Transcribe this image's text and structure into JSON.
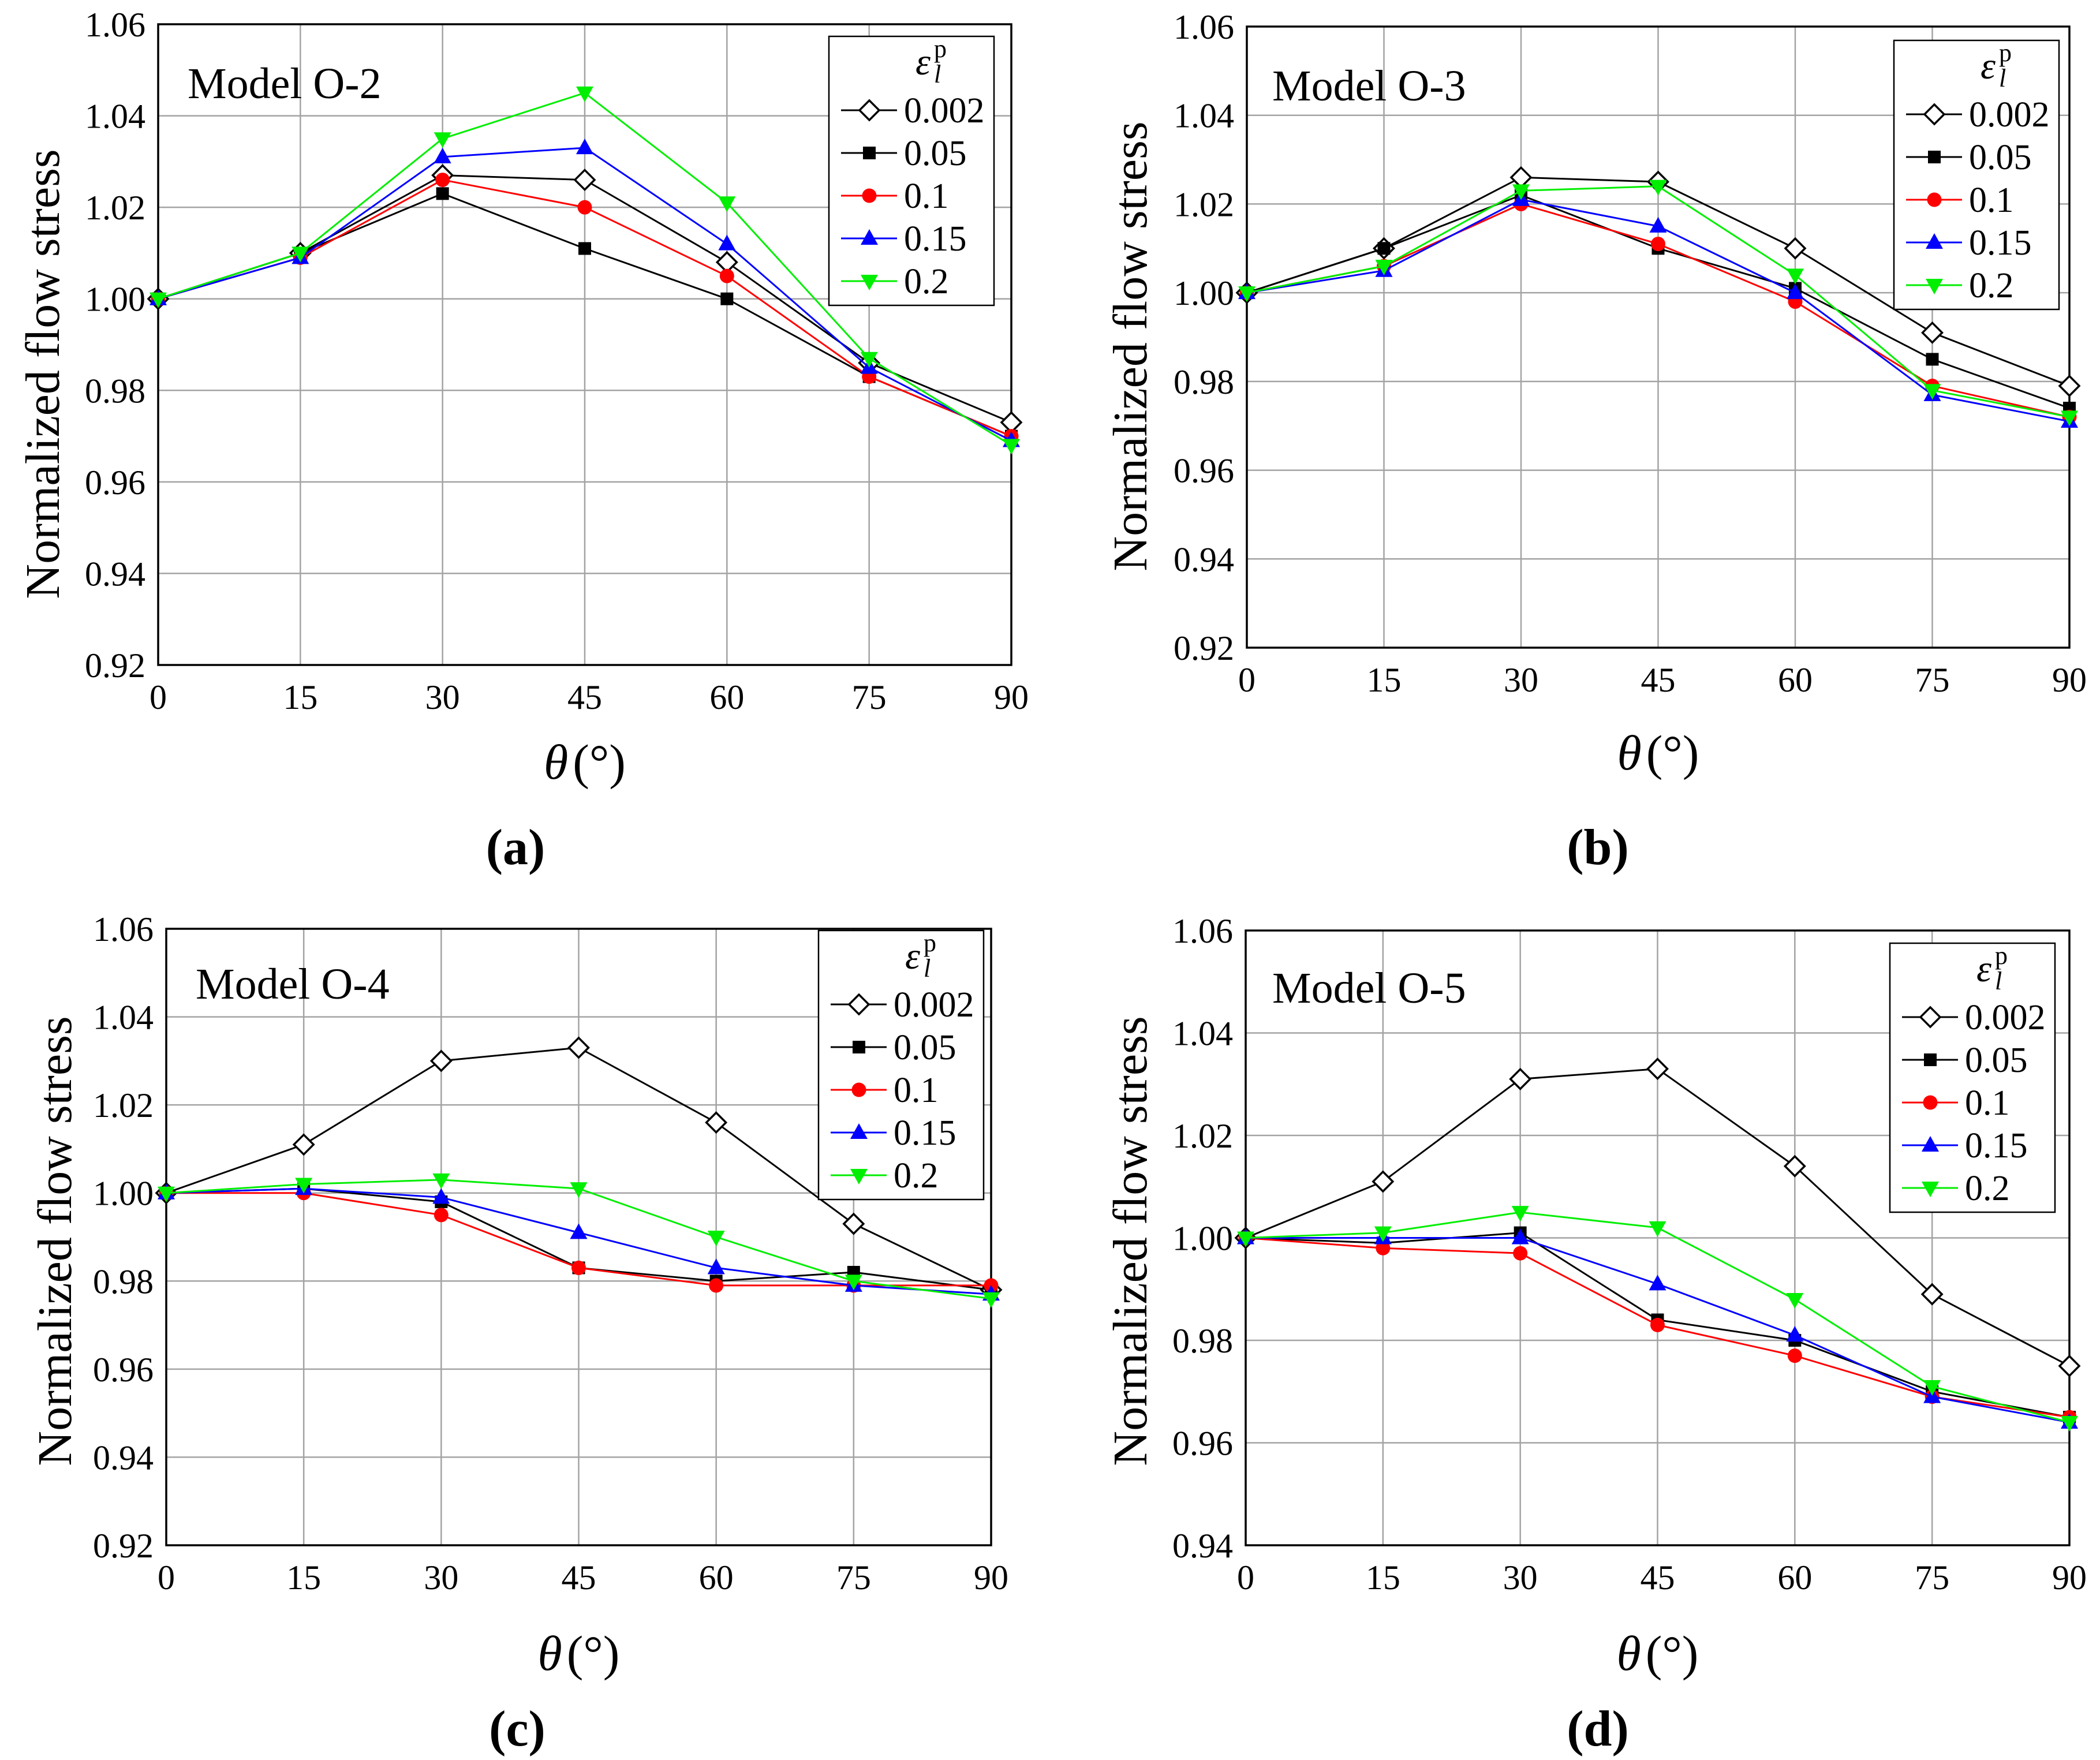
{
  "chart_data": [
    {
      "type": "line",
      "caption": "(a)",
      "title": "Model O-2",
      "ylabel": "Normalized flow stress",
      "xlabel_symbol": "θ",
      "xlabel_unit": "(°)",
      "x": [
        0,
        15,
        30,
        45,
        60,
        75,
        90
      ],
      "xticks": [
        0,
        15,
        30,
        45,
        60,
        75,
        90
      ],
      "xlim": [
        0,
        90
      ],
      "ylim": [
        0.92,
        1.06
      ],
      "yticks": [
        "0.92",
        "0.94",
        "0.96",
        "0.98",
        "1.00",
        "1.02",
        "1.04",
        "1.06"
      ],
      "grid": true,
      "legend": {
        "symbol": "ε",
        "sub": "l",
        "sup": "p",
        "position": "top-right"
      },
      "series": [
        {
          "name": "0.002",
          "color": "#000000",
          "marker": "diamond-open",
          "values": [
            1.0,
            1.01,
            1.027,
            1.026,
            1.008,
            0.986,
            0.973
          ]
        },
        {
          "name": "0.05",
          "color": "#000000",
          "marker": "square",
          "values": [
            1.0,
            1.01,
            1.023,
            1.011,
            1.0,
            0.983,
            0.97
          ]
        },
        {
          "name": "0.1",
          "color": "#ff0000",
          "marker": "circle",
          "values": [
            1.0,
            1.009,
            1.026,
            1.02,
            1.005,
            0.983,
            0.97
          ]
        },
        {
          "name": "0.15",
          "color": "#0000ff",
          "marker": "triangle-up",
          "values": [
            1.0,
            1.009,
            1.031,
            1.033,
            1.012,
            0.985,
            0.969
          ]
        },
        {
          "name": "0.2",
          "color": "#00ee00",
          "marker": "triangle-down",
          "values": [
            1.0,
            1.01,
            1.035,
            1.045,
            1.021,
            0.987,
            0.968
          ]
        }
      ]
    },
    {
      "type": "line",
      "caption": "(b)",
      "title": "Model O-3",
      "ylabel": "Normalized flow stress",
      "xlabel_symbol": "θ",
      "xlabel_unit": "(°)",
      "x": [
        0,
        15,
        30,
        45,
        60,
        75,
        90
      ],
      "xticks": [
        0,
        15,
        30,
        45,
        60,
        75,
        90
      ],
      "xlim": [
        0,
        90
      ],
      "ylim": [
        0.92,
        1.06
      ],
      "yticks": [
        "0.92",
        "0.94",
        "0.96",
        "0.98",
        "1.00",
        "1.02",
        "1.04",
        "1.06"
      ],
      "grid": true,
      "legend": {
        "symbol": "ε",
        "sub": "l",
        "sup": "p",
        "position": "top-right"
      },
      "series": [
        {
          "name": "0.002",
          "color": "#000000",
          "marker": "diamond-open",
          "values": [
            1.0,
            1.01,
            1.026,
            1.025,
            1.01,
            0.991,
            0.979
          ]
        },
        {
          "name": "0.05",
          "color": "#000000",
          "marker": "square",
          "values": [
            1.0,
            1.01,
            1.022,
            1.01,
            1.001,
            0.985,
            0.974
          ]
        },
        {
          "name": "0.1",
          "color": "#ff0000",
          "marker": "circle",
          "values": [
            1.0,
            1.006,
            1.02,
            1.011,
            0.998,
            0.979,
            0.972
          ]
        },
        {
          "name": "0.15",
          "color": "#0000ff",
          "marker": "triangle-up",
          "values": [
            1.0,
            1.005,
            1.021,
            1.015,
            1.0,
            0.977,
            0.971
          ]
        },
        {
          "name": "0.2",
          "color": "#00ee00",
          "marker": "triangle-down",
          "values": [
            1.0,
            1.006,
            1.023,
            1.024,
            1.004,
            0.978,
            0.972
          ]
        }
      ]
    },
    {
      "type": "line",
      "caption": "(c)",
      "title": "Model O-4",
      "ylabel": "Normalized flow stress",
      "xlabel_symbol": "θ",
      "xlabel_unit": "(°)",
      "x": [
        0,
        15,
        30,
        45,
        60,
        75,
        90
      ],
      "xticks": [
        0,
        15,
        30,
        45,
        60,
        75,
        90
      ],
      "xlim": [
        0,
        90
      ],
      "ylim": [
        0.92,
        1.06
      ],
      "yticks": [
        "0.92",
        "0.94",
        "0.96",
        "0.98",
        "1.00",
        "1.02",
        "1.04",
        "1.06"
      ],
      "grid": true,
      "legend": {
        "symbol": "ε",
        "sub": "l",
        "sup": "p",
        "position": "top-right"
      },
      "series": [
        {
          "name": "0.002",
          "color": "#000000",
          "marker": "diamond-open",
          "values": [
            1.0,
            1.011,
            1.03,
            1.033,
            1.016,
            0.993,
            0.978
          ]
        },
        {
          "name": "0.05",
          "color": "#000000",
          "marker": "square",
          "values": [
            1.0,
            1.001,
            0.998,
            0.983,
            0.98,
            0.982,
            0.978
          ]
        },
        {
          "name": "0.1",
          "color": "#ff0000",
          "marker": "circle",
          "values": [
            1.0,
            1.0,
            0.995,
            0.983,
            0.979,
            0.979,
            0.979
          ]
        },
        {
          "name": "0.15",
          "color": "#0000ff",
          "marker": "triangle-up",
          "values": [
            1.0,
            1.001,
            0.999,
            0.991,
            0.983,
            0.979,
            0.977
          ]
        },
        {
          "name": "0.2",
          "color": "#00ee00",
          "marker": "triangle-down",
          "values": [
            1.0,
            1.002,
            1.003,
            1.001,
            0.99,
            0.98,
            0.976
          ]
        }
      ]
    },
    {
      "type": "line",
      "caption": "(d)",
      "title": "Model O-5",
      "ylabel": "Normalized flow stress",
      "xlabel_symbol": "θ",
      "xlabel_unit": "(°)",
      "x": [
        0,
        15,
        30,
        45,
        60,
        75,
        90
      ],
      "xticks": [
        0,
        15,
        30,
        45,
        60,
        75,
        90
      ],
      "xlim": [
        0,
        90
      ],
      "ylim": [
        0.94,
        1.06
      ],
      "yticks": [
        "0.94",
        "0.96",
        "0.98",
        "1.00",
        "1.02",
        "1.04",
        "1.06"
      ],
      "grid": true,
      "legend": {
        "symbol": "ε",
        "sub": "l",
        "sup": "p",
        "position": "top-right"
      },
      "series": [
        {
          "name": "0.002",
          "color": "#000000",
          "marker": "diamond-open",
          "values": [
            1.0,
            1.011,
            1.031,
            1.033,
            1.014,
            0.989,
            0.975
          ]
        },
        {
          "name": "0.05",
          "color": "#000000",
          "marker": "square",
          "values": [
            1.0,
            0.999,
            1.001,
            0.984,
            0.98,
            0.97,
            0.965
          ]
        },
        {
          "name": "0.1",
          "color": "#ff0000",
          "marker": "circle",
          "values": [
            1.0,
            0.998,
            0.997,
            0.983,
            0.977,
            0.969,
            0.965
          ]
        },
        {
          "name": "0.15",
          "color": "#0000ff",
          "marker": "triangle-up",
          "values": [
            1.0,
            1.0,
            1.0,
            0.991,
            0.981,
            0.969,
            0.964
          ]
        },
        {
          "name": "0.2",
          "color": "#00ee00",
          "marker": "triangle-down",
          "values": [
            1.0,
            1.001,
            1.005,
            1.002,
            0.988,
            0.971,
            0.964
          ]
        }
      ]
    }
  ]
}
